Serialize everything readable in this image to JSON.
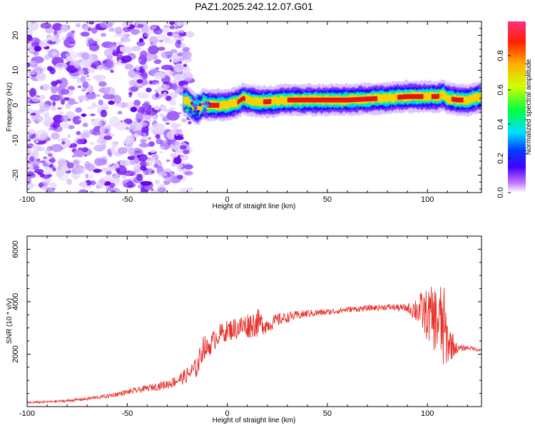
{
  "title": "PAZ1.2025.242.12.07.G01",
  "chart_data": [
    {
      "type": "heatmap",
      "name": "spectrogram",
      "xlabel": "Height of straight line (km)",
      "ylabel": "Frequency (Hz)",
      "xlim": [
        -100,
        127
      ],
      "ylim": [
        -25,
        24
      ],
      "xticks": [
        -100,
        -50,
        0,
        50,
        100
      ],
      "yticks": [
        -20,
        -10,
        0,
        10,
        20
      ],
      "noise_region_x": [
        -100,
        -20
      ],
      "signal_ridge": {
        "x": [
          -20,
          -18,
          -15,
          -12,
          -10,
          -5,
          0,
          5,
          8,
          10,
          15,
          20,
          30,
          40,
          50,
          60,
          70,
          80,
          90,
          100,
          105,
          108,
          110,
          115,
          120,
          127
        ],
        "freq": [
          1.5,
          0,
          -1.5,
          0.5,
          0,
          0,
          0,
          0.8,
          2,
          1.5,
          1,
          1,
          1.5,
          1.5,
          1.5,
          1.5,
          1.8,
          2,
          2.5,
          2.5,
          2.5,
          3,
          2,
          1.5,
          1.5,
          2.5
        ]
      },
      "colorbar": {
        "label": "Normalized spectral amplitude",
        "ticks": [
          "0.0",
          "0.2",
          "0.4",
          "0.6",
          "0.8"
        ],
        "range": [
          0,
          1
        ]
      }
    },
    {
      "type": "line",
      "name": "snr",
      "xlabel": "Height of straight line (km)",
      "ylabel": "SNR (10 * v/v)",
      "xlim": [
        -100,
        127
      ],
      "ylim": [
        0,
        6500
      ],
      "xticks": [
        -100,
        -50,
        0,
        50,
        100
      ],
      "yticks": [
        2000,
        4000,
        6000
      ],
      "color": "#e8302a",
      "series": [
        {
          "name": "SNR",
          "x": [
            -100,
            -90,
            -80,
            -70,
            -60,
            -50,
            -40,
            -30,
            -25,
            -20,
            -15,
            -12,
            -10,
            -5,
            0,
            5,
            10,
            15,
            20,
            25,
            30,
            40,
            50,
            60,
            70,
            80,
            90,
            95,
            100,
            105,
            108,
            110,
            115,
            120,
            127
          ],
          "y": [
            150,
            180,
            220,
            300,
            400,
            550,
            700,
            850,
            1000,
            1200,
            1500,
            2300,
            2200,
            2700,
            2900,
            3000,
            3100,
            3200,
            3100,
            3300,
            3400,
            3550,
            3600,
            3700,
            3750,
            3800,
            3750,
            3700,
            3500,
            3300,
            3000,
            2500,
            2200,
            2250,
            2150
          ],
          "jitter": [
            40,
            40,
            50,
            60,
            80,
            100,
            120,
            180,
            220,
            300,
            400,
            500,
            400,
            400,
            400,
            450,
            500,
            550,
            300,
            250,
            200,
            150,
            120,
            110,
            110,
            120,
            150,
            600,
            1000,
            1400,
            1800,
            900,
            150,
            80,
            60
          ]
        }
      ]
    }
  ]
}
